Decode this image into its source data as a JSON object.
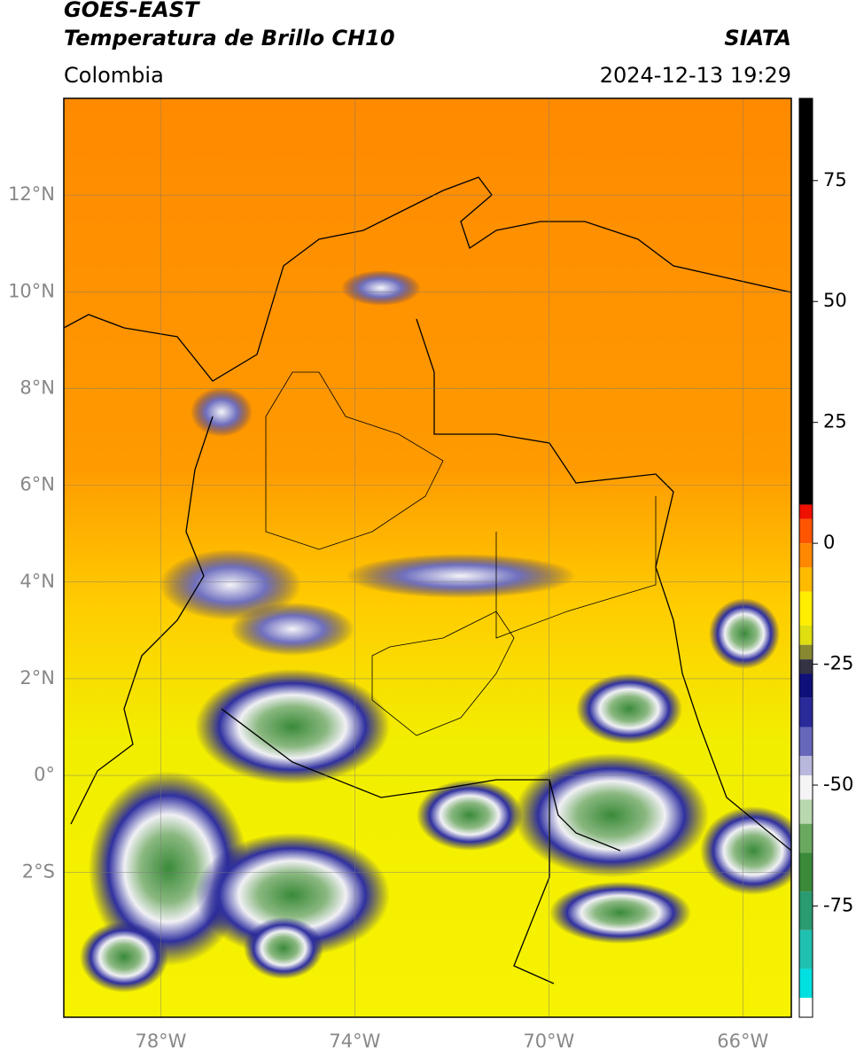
{
  "header": {
    "title": "GOES-EAST",
    "subtitle": "Temperatura de Brillo CH10",
    "source": "SIATA",
    "region": "Colombia",
    "datetime": "2024-12-13 19:29"
  },
  "map": {
    "xlim": [
      -80,
      -65
    ],
    "ylim": [
      -5,
      14
    ],
    "xticks": [
      {
        "value": -78,
        "label": "78°W"
      },
      {
        "value": -74,
        "label": "74°W"
      },
      {
        "value": -70,
        "label": "70°W"
      },
      {
        "value": -66,
        "label": "66°W"
      }
    ],
    "yticks": [
      {
        "value": 12,
        "label": "12°N"
      },
      {
        "value": 10,
        "label": "10°N"
      },
      {
        "value": 8,
        "label": "8°N"
      },
      {
        "value": 6,
        "label": "6°N"
      },
      {
        "value": 4,
        "label": "4°N"
      },
      {
        "value": 2,
        "label": "2°N"
      },
      {
        "value": 0,
        "label": "0°"
      },
      {
        "value": -2,
        "label": "2°S"
      }
    ],
    "grid": true
  },
  "colorbar": {
    "lim": [
      -98,
      92
    ],
    "ticks": [
      75,
      50,
      25,
      0,
      -25,
      -50,
      -75
    ],
    "stops": [
      {
        "value": 92,
        "color": "#000000"
      },
      {
        "value": 8,
        "color": "#ee1100"
      },
      {
        "value": 5,
        "color": "#ff5500"
      },
      {
        "value": 0,
        "color": "#ff8800"
      },
      {
        "value": -5,
        "color": "#ffbb00"
      },
      {
        "value": -10,
        "color": "#ffee00"
      },
      {
        "value": -17,
        "color": "#dede10"
      },
      {
        "value": -21,
        "color": "#888830"
      },
      {
        "value": -24,
        "color": "#333344"
      },
      {
        "value": -27,
        "color": "#10107a"
      },
      {
        "value": -32,
        "color": "#2a2a9a"
      },
      {
        "value": -38,
        "color": "#6666bb"
      },
      {
        "value": -44,
        "color": "#b8b8dd"
      },
      {
        "value": -48,
        "color": "#f4f4f4"
      },
      {
        "value": -53,
        "color": "#b8d8b0"
      },
      {
        "value": -58,
        "color": "#6aa860"
      },
      {
        "value": -64,
        "color": "#3a8a3a"
      },
      {
        "value": -72,
        "color": "#2a9a70"
      },
      {
        "value": -80,
        "color": "#20c0b0"
      },
      {
        "value": -88,
        "color": "#00e0e0"
      },
      {
        "value": -94,
        "color": "#ffffff"
      }
    ]
  }
}
